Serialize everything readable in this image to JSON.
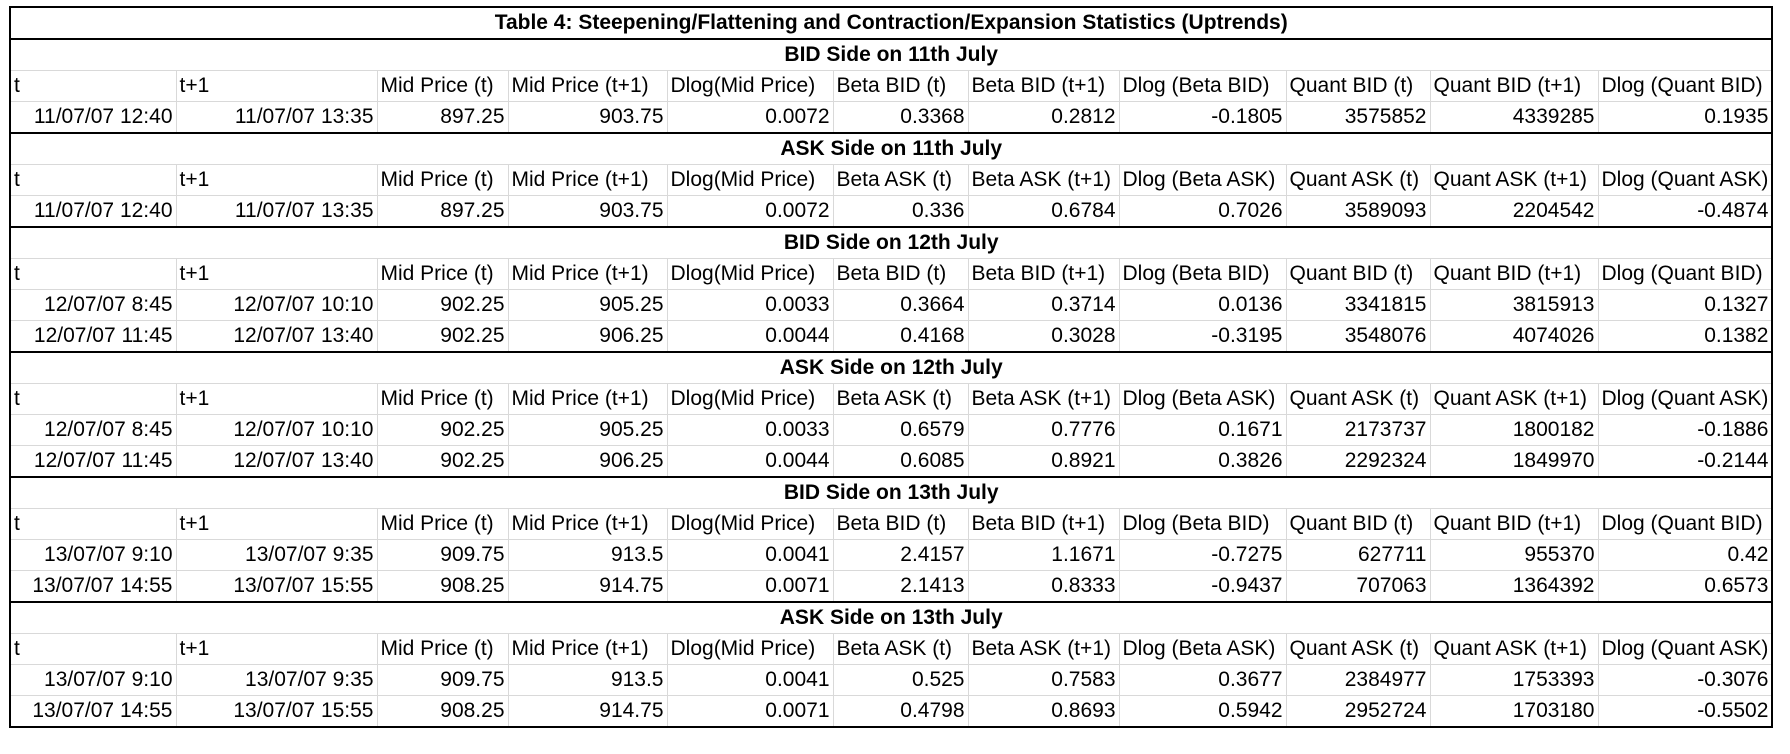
{
  "title": "Table 4: Steepening/Flattening and Contraction/Expansion Statistics (Uptrends)",
  "sections": [
    {
      "heading": "BID Side on 11th July",
      "columns": [
        "t",
        "t+1",
        "Mid Price (t)",
        "Mid Price (t+1)",
        "Dlog(Mid Price)",
        "Beta BID (t)",
        "Beta BID (t+1)",
        "Dlog (Beta BID)",
        "Quant BID (t)",
        "Quant BID (t+1)",
        "Dlog (Quant BID)"
      ],
      "rows": [
        [
          "11/07/07 12:40",
          "11/07/07 13:35",
          "897.25",
          "903.75",
          "0.0072",
          "0.3368",
          "0.2812",
          "-0.1805",
          "3575852",
          "4339285",
          "0.1935"
        ]
      ]
    },
    {
      "heading": "ASK Side on 11th July",
      "columns": [
        "t",
        "t+1",
        "Mid Price (t)",
        "Mid Price (t+1)",
        "Dlog(Mid Price)",
        "Beta ASK (t)",
        "Beta ASK (t+1)",
        "Dlog (Beta ASK)",
        "Quant ASK (t)",
        "Quant ASK (t+1)",
        "Dlog (Quant ASK)"
      ],
      "rows": [
        [
          "11/07/07 12:40",
          "11/07/07 13:35",
          "897.25",
          "903.75",
          "0.0072",
          "0.336",
          "0.6784",
          "0.7026",
          "3589093",
          "2204542",
          "-0.4874"
        ]
      ]
    },
    {
      "heading": "BID Side on 12th July",
      "columns": [
        "t",
        "t+1",
        "Mid Price (t)",
        "Mid Price (t+1)",
        "Dlog(Mid Price)",
        "Beta BID (t)",
        "Beta BID (t+1)",
        "Dlog (Beta BID)",
        "Quant BID (t)",
        "Quant BID (t+1)",
        "Dlog (Quant BID)"
      ],
      "rows": [
        [
          "12/07/07 8:45",
          "12/07/07 10:10",
          "902.25",
          "905.25",
          "0.0033",
          "0.3664",
          "0.3714",
          "0.0136",
          "3341815",
          "3815913",
          "0.1327"
        ],
        [
          "12/07/07 11:45",
          "12/07/07 13:40",
          "902.25",
          "906.25",
          "0.0044",
          "0.4168",
          "0.3028",
          "-0.3195",
          "3548076",
          "4074026",
          "0.1382"
        ]
      ]
    },
    {
      "heading": "ASK Side on 12th July",
      "columns": [
        "t",
        "t+1",
        "Mid Price (t)",
        "Mid Price (t+1)",
        "Dlog(Mid Price)",
        "Beta ASK (t)",
        "Beta ASK (t+1)",
        "Dlog (Beta ASK)",
        "Quant ASK (t)",
        "Quant ASK (t+1)",
        "Dlog (Quant ASK)"
      ],
      "rows": [
        [
          "12/07/07 8:45",
          "12/07/07 10:10",
          "902.25",
          "905.25",
          "0.0033",
          "0.6579",
          "0.7776",
          "0.1671",
          "2173737",
          "1800182",
          "-0.1886"
        ],
        [
          "12/07/07 11:45",
          "12/07/07 13:40",
          "902.25",
          "906.25",
          "0.0044",
          "0.6085",
          "0.8921",
          "0.3826",
          "2292324",
          "1849970",
          "-0.2144"
        ]
      ]
    },
    {
      "heading": "BID Side on 13th July",
      "columns": [
        "t",
        "t+1",
        "Mid Price (t)",
        "Mid Price (t+1)",
        "Dlog(Mid Price)",
        "Beta BID (t)",
        "Beta BID (t+1)",
        "Dlog (Beta BID)",
        "Quant BID (t)",
        "Quant BID (t+1)",
        "Dlog (Quant BID)"
      ],
      "rows": [
        [
          "13/07/07 9:10",
          "13/07/07 9:35",
          "909.75",
          "913.5",
          "0.0041",
          "2.4157",
          "1.1671",
          "-0.7275",
          "627711",
          "955370",
          "0.42"
        ],
        [
          "13/07/07 14:55",
          "13/07/07 15:55",
          "908.25",
          "914.75",
          "0.0071",
          "2.1413",
          "0.8333",
          "-0.9437",
          "707063",
          "1364392",
          "0.6573"
        ]
      ]
    },
    {
      "heading": "ASK Side on 13th July",
      "columns": [
        "t",
        "t+1",
        "Mid Price (t)",
        "Mid Price (t+1)",
        "Dlog(Mid Price)",
        "Beta ASK (t)",
        "Beta ASK (t+1)",
        "Dlog (Beta ASK)",
        "Quant ASK (t)",
        "Quant ASK (t+1)",
        "Dlog (Quant ASK)"
      ],
      "rows": [
        [
          "13/07/07 9:10",
          "13/07/07 9:35",
          "909.75",
          "913.5",
          "0.0041",
          "0.525",
          "0.7583",
          "0.3677",
          "2384977",
          "1753393",
          "-0.3076"
        ],
        [
          "13/07/07 14:55",
          "13/07/07 15:55",
          "908.25",
          "914.75",
          "0.0071",
          "0.4798",
          "0.8693",
          "0.5942",
          "2952724",
          "1703180",
          "-0.5502"
        ]
      ]
    }
  ]
}
